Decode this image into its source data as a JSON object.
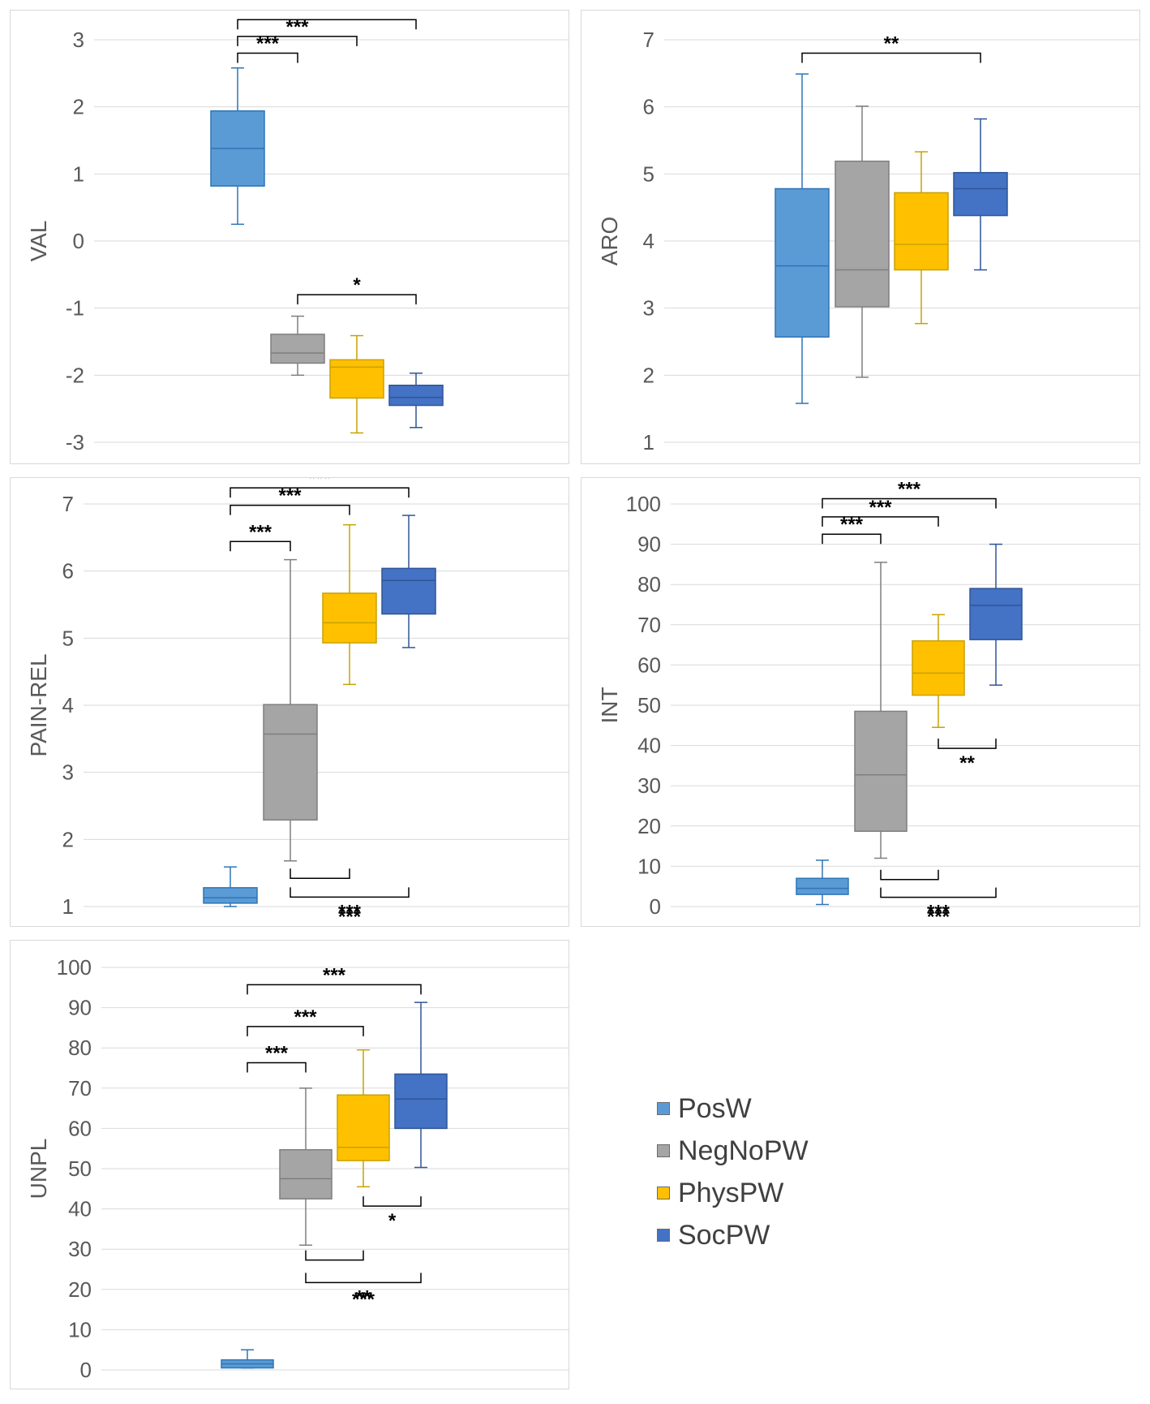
{
  "legend": [
    {
      "name": "PosW",
      "color": "#5b9bd5"
    },
    {
      "name": "NegNoPW",
      "color": "#a5a5a5"
    },
    {
      "name": "PhysPW",
      "color": "#ffc000"
    },
    {
      "name": "SocPW",
      "color": "#4472c4"
    }
  ],
  "colors": {
    "fills": [
      "#5b9bd5",
      "#a5a5a5",
      "#ffc000",
      "#4472c4"
    ],
    "strokes": [
      "#2e75b6",
      "#7f7f7f",
      "#c9a200",
      "#2f5597"
    ]
  },
  "chart_data": [
    {
      "type": "boxplot",
      "ylabel": "VAL",
      "ylim": [
        -3,
        3
      ],
      "yticks": [
        "3",
        "2",
        "1",
        "0",
        "-1",
        "-2",
        "-3"
      ],
      "groups": [
        "PosW",
        "NegNoPW",
        "PhysPW",
        "SocPW"
      ],
      "boxes": [
        {
          "min": 0.25,
          "q1": 0.82,
          "median": 1.38,
          "q3": 1.94,
          "max": 2.58
        },
        {
          "min": -2.0,
          "q1": -1.82,
          "median": -1.67,
          "q3": -1.39,
          "max": -1.12
        },
        {
          "min": -2.86,
          "q1": -2.34,
          "median": -1.88,
          "q3": -1.77,
          "max": -1.41
        },
        {
          "min": -2.78,
          "q1": -2.45,
          "median": -2.33,
          "q3": -2.15,
          "max": -1.97
        }
      ],
      "significance": [
        {
          "from": 1,
          "to": 2,
          "label": "***",
          "y": 2.8,
          "dir": "down"
        },
        {
          "from": 1,
          "to": 3,
          "label": "***",
          "y": 3.05,
          "dir": "down"
        },
        {
          "from": 1,
          "to": 4,
          "label": "***",
          "y": 3.3,
          "dir": "down"
        },
        {
          "from": 2,
          "to": 4,
          "label": "*",
          "y": -0.8,
          "dir": "down"
        }
      ]
    },
    {
      "type": "boxplot",
      "ylabel": "ARO",
      "ylim": [
        1,
        7
      ],
      "yticks": [
        "7",
        "6",
        "5",
        "4",
        "3",
        "2",
        "1"
      ],
      "groups": [
        "PosW",
        "NegNoPW",
        "PhysPW",
        "SocPW"
      ],
      "boxes": [
        {
          "min": 1.58,
          "q1": 2.57,
          "median": 3.63,
          "q3": 4.78,
          "max": 6.49
        },
        {
          "min": 1.97,
          "q1": 3.02,
          "median": 3.57,
          "q3": 5.19,
          "max": 6.01
        },
        {
          "min": 2.77,
          "q1": 3.57,
          "median": 3.95,
          "q3": 4.72,
          "max": 5.33
        },
        {
          "min": 3.57,
          "q1": 4.38,
          "median": 4.78,
          "q3": 5.02,
          "max": 5.82
        }
      ],
      "significance": [
        {
          "from": 1,
          "to": 4,
          "label": "**",
          "y": 6.8,
          "dir": "down"
        }
      ]
    },
    {
      "type": "boxplot",
      "ylabel": "PAIN-REL",
      "ylim": [
        1,
        7
      ],
      "yticks": [
        "7",
        "6",
        "5",
        "4",
        "3",
        "2",
        "1"
      ],
      "groups": [
        "PosW",
        "NegNoPW",
        "PhysPW",
        "SocPW"
      ],
      "boxes": [
        {
          "min": 1.0,
          "q1": 1.05,
          "median": 1.13,
          "q3": 1.28,
          "max": 1.59
        },
        {
          "min": 1.68,
          "q1": 2.29,
          "median": 3.57,
          "q3": 4.01,
          "max": 6.17
        },
        {
          "min": 4.31,
          "q1": 4.93,
          "median": 5.23,
          "q3": 5.67,
          "max": 6.69
        },
        {
          "min": 4.86,
          "q1": 5.36,
          "median": 5.86,
          "q3": 6.04,
          "max": 6.83
        }
      ],
      "significance": [
        {
          "from": 1,
          "to": 2,
          "label": "***",
          "y": 6.44,
          "dir": "down"
        },
        {
          "from": 1,
          "to": 3,
          "label": "***",
          "y": 6.98,
          "dir": "down"
        },
        {
          "from": 1,
          "to": 4,
          "label": "***",
          "y": 7.24,
          "dir": "down"
        },
        {
          "from": 2,
          "to": 3,
          "label": "",
          "y": 1.42,
          "dir": "up"
        },
        {
          "from": 2,
          "to": 4,
          "label": "***",
          "y": 1.14,
          "dir": "up"
        },
        {
          "from": 2,
          "to": 4,
          "label": "***",
          "y": 0.85,
          "dir": "none"
        }
      ]
    },
    {
      "type": "boxplot",
      "ylabel": "INT",
      "ylim": [
        0,
        100
      ],
      "yticks": [
        "100",
        "90",
        "80",
        "70",
        "60",
        "50",
        "40",
        "30",
        "20",
        "10",
        "0"
      ],
      "groups": [
        "PosW",
        "NegNoPW",
        "PhysPW",
        "SocPW"
      ],
      "boxes": [
        {
          "min": 0.5,
          "q1": 3.0,
          "median": 4.5,
          "q3": 7.0,
          "max": 11.5
        },
        {
          "min": 12.0,
          "q1": 18.7,
          "median": 32.7,
          "q3": 48.5,
          "max": 85.5
        },
        {
          "min": 44.5,
          "q1": 52.5,
          "median": 58.0,
          "q3": 66.0,
          "max": 72.5
        },
        {
          "min": 55.0,
          "q1": 66.3,
          "median": 74.8,
          "q3": 79.0,
          "max": 90.0
        }
      ],
      "significance": [
        {
          "from": 1,
          "to": 2,
          "label": "***",
          "y": 92.5,
          "dir": "down"
        },
        {
          "from": 1,
          "to": 3,
          "label": "***",
          "y": 96.8,
          "dir": "down"
        },
        {
          "from": 1,
          "to": 4,
          "label": "***",
          "y": 101.3,
          "dir": "down"
        },
        {
          "from": 3,
          "to": 4,
          "label": "**",
          "y": 39.3,
          "dir": "up"
        },
        {
          "from": 2,
          "to": 3,
          "label": "",
          "y": 6.7,
          "dir": "up"
        },
        {
          "from": 2,
          "to": 4,
          "label": "***",
          "y": 2.3,
          "dir": "up"
        },
        {
          "from": 2,
          "to": 4,
          "label": "***",
          "y": -2.5,
          "dir": "none"
        }
      ]
    },
    {
      "type": "boxplot",
      "ylabel": "UNPL",
      "ylim": [
        0,
        100
      ],
      "yticks": [
        "100",
        "90",
        "80",
        "70",
        "60",
        "50",
        "40",
        "30",
        "20",
        "10",
        "0"
      ],
      "groups": [
        "PosW",
        "NegNoPW",
        "PhysPW",
        "SocPW"
      ],
      "boxes": [
        {
          "min": 0.5,
          "q1": 0.5,
          "median": 1.5,
          "q3": 2.5,
          "max": 5.0
        },
        {
          "min": 31.0,
          "q1": 42.5,
          "median": 47.5,
          "q3": 54.7,
          "max": 70.0
        },
        {
          "min": 45.5,
          "q1": 52.0,
          "median": 55.3,
          "q3": 68.3,
          "max": 79.5
        },
        {
          "min": 50.3,
          "q1": 60.0,
          "median": 67.3,
          "q3": 73.5,
          "max": 91.3
        }
      ],
      "significance": [
        {
          "from": 1,
          "to": 2,
          "label": "***",
          "y": 76.3,
          "dir": "down"
        },
        {
          "from": 1,
          "to": 3,
          "label": "***",
          "y": 85.3,
          "dir": "down"
        },
        {
          "from": 1,
          "to": 4,
          "label": "***",
          "y": 95.7,
          "dir": "down"
        },
        {
          "from": 3,
          "to": 4,
          "label": "*",
          "y": 40.7,
          "dir": "up"
        },
        {
          "from": 2,
          "to": 3,
          "label": "",
          "y": 27.3,
          "dir": "up"
        },
        {
          "from": 2,
          "to": 4,
          "label": "**",
          "y": 21.7,
          "dir": "up"
        },
        {
          "from": 2,
          "to": 4,
          "label": "***",
          "y": 17.5,
          "dir": "none"
        }
      ]
    }
  ]
}
